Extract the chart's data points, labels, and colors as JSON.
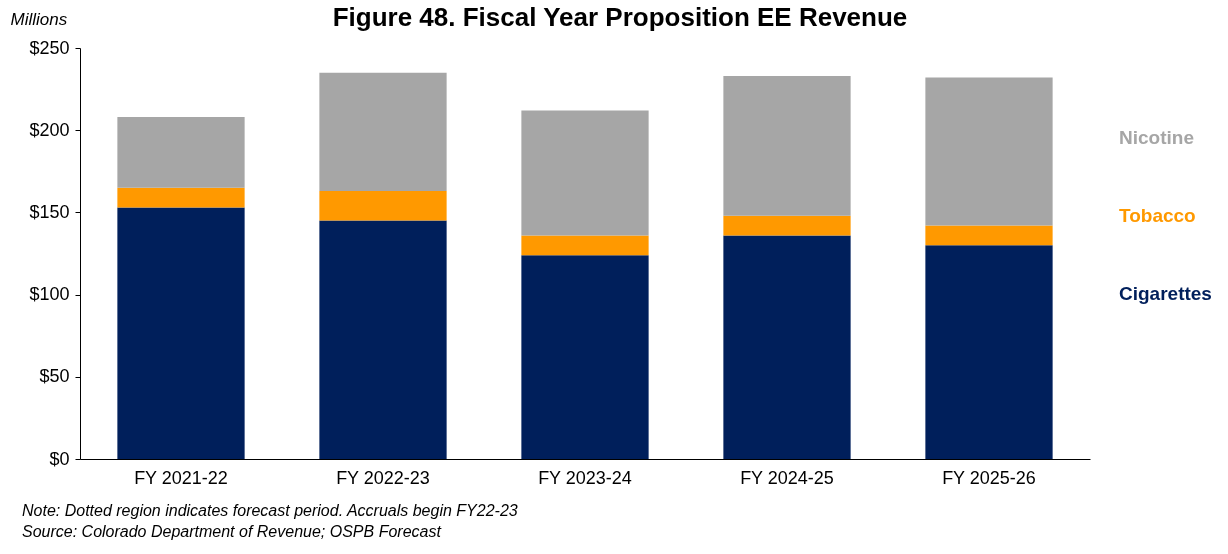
{
  "chart_data": {
    "type": "bar",
    "title": "Figure 48. Fiscal Year Proposition EE Revenue",
    "ylabel": "Millions",
    "categories": [
      "FY 2021-22",
      "FY 2022-23",
      "FY 2023-24",
      "FY 2024-25",
      "FY 2025-26"
    ],
    "stacked": true,
    "series": [
      {
        "name": "Cigarettes",
        "color": "#001f5b",
        "values": [
          153,
          145,
          124,
          136,
          130
        ]
      },
      {
        "name": "Tobacco",
        "color": "#ff9900",
        "values": [
          12,
          18,
          12,
          12,
          12
        ]
      },
      {
        "name": "Nicotine",
        "color": "#a6a6a6",
        "values": [
          43,
          72,
          76,
          85,
          90
        ]
      }
    ],
    "ylim": [
      0,
      250
    ],
    "yticks": [
      {
        "value": 0,
        "label": "$0"
      },
      {
        "value": 50,
        "label": "$50"
      },
      {
        "value": 100,
        "label": "$100"
      },
      {
        "value": 150,
        "label": "$150"
      },
      {
        "value": 200,
        "label": "$200"
      },
      {
        "value": 250,
        "label": "$250"
      }
    ],
    "grid": false,
    "legend": "right",
    "annotations": [
      "Note: Dotted region indicates forecast period. Accruals begin FY22-23",
      "Source: Colorado Department of Revenue; OSPB Forecast"
    ]
  }
}
